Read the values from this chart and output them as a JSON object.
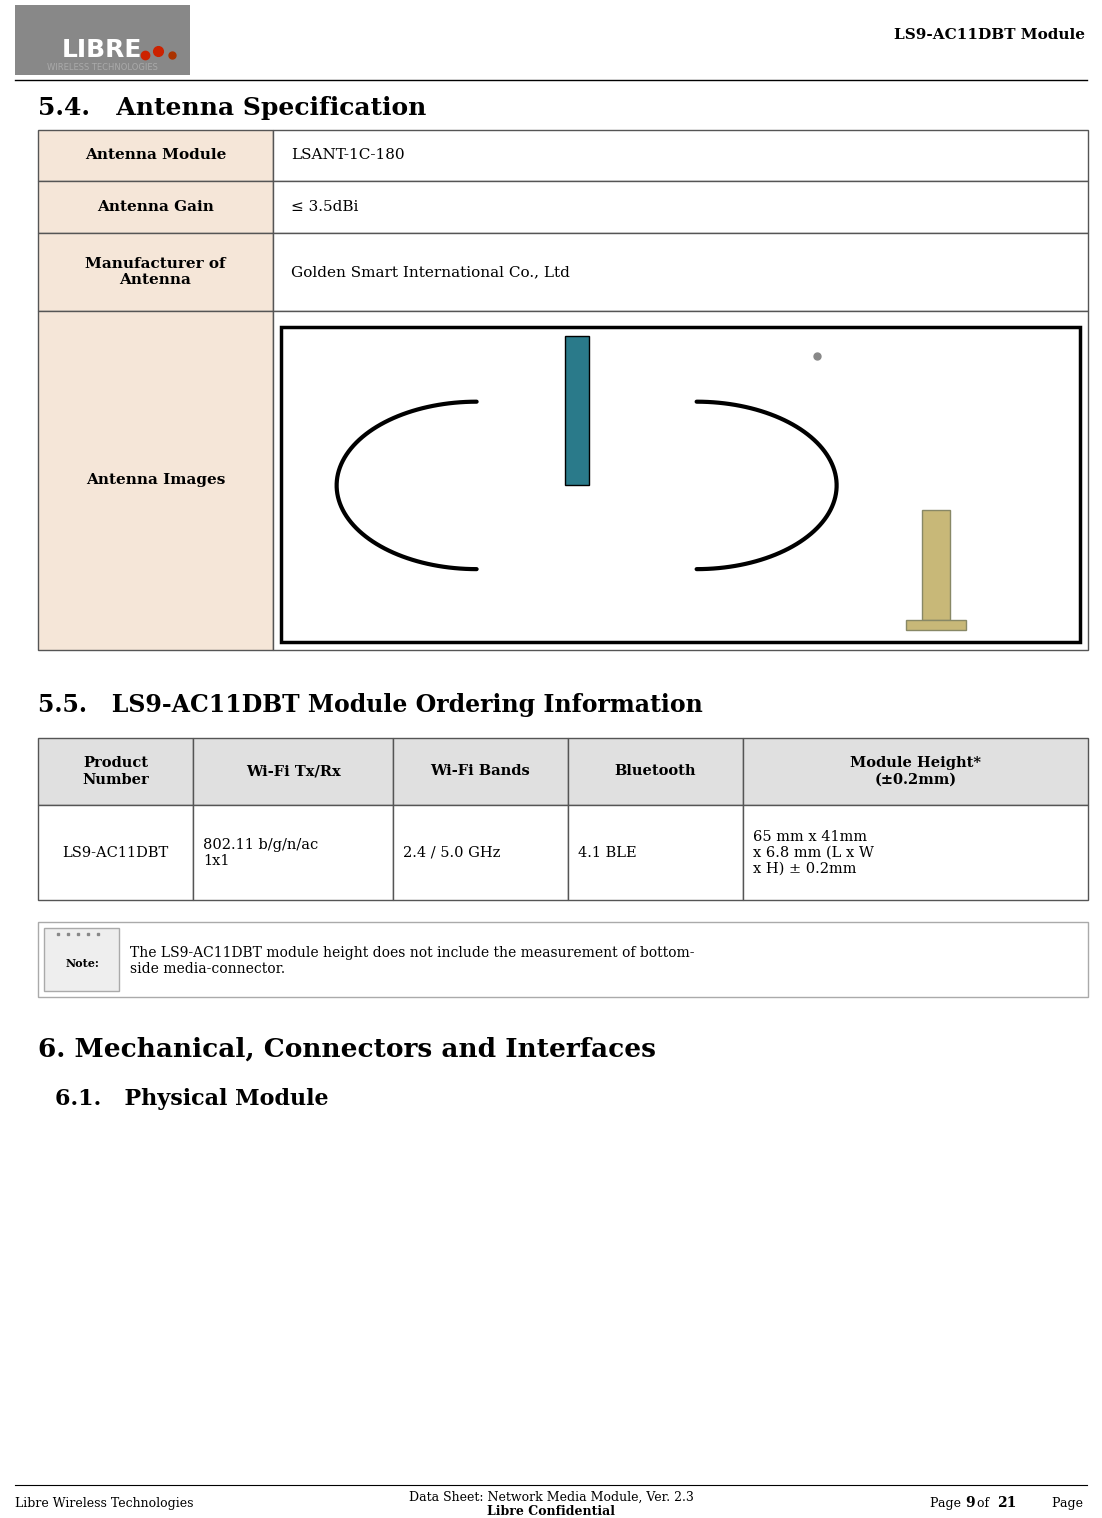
{
  "page_title": "LS9-AC11DBT Module",
  "section_54_title": "5.4.   Antenna Specification",
  "antenna_table": {
    "col1_bg": "#f5e6d8",
    "col_header_items": [
      "Antenna Module",
      "Antenna Gain",
      "Manufacturer of\nAntenna",
      "Antenna Images"
    ],
    "col_value_items": [
      "LSANT-1C-180",
      "≤ 3.5dBi",
      "Golden Smart International Co., Ltd",
      ""
    ]
  },
  "section_55_title": "5.5.   LS9-AC11DBT Module Ordering Information",
  "ordering_table": {
    "headers": [
      "Product\nNumber",
      "Wi-Fi Tx/Rx",
      "Wi-Fi Bands",
      "Bluetooth",
      "Module Height*\n(±0.2mm)"
    ],
    "row": [
      "LS9-AC11DBT",
      "802.11 b/g/n/ac\n1x1",
      "2.4 / 5.0 GHz",
      "4.1 BLE",
      "65 mm x 41mm\nx 6.8 mm (L x W\nx H) ± 0.2mm"
    ],
    "header_bg": "#e8e8e8"
  },
  "note_text": "The LS9-AC11DBT module height does not include the measurement of bottom-\nside media-connector.",
  "section_6_title": "6. Mechanical, Connectors and Interfaces",
  "section_61_title": "6.1.   Physical Module",
  "footer_left": "Libre Wireless Technologies",
  "footer_center": "Data Sheet: Network Media Module, Ver. 2.3\nLibre Confidential",
  "footer_right": "Page 9 of 21",
  "footer_right_bold": "9",
  "footer_right_bold2": "21"
}
